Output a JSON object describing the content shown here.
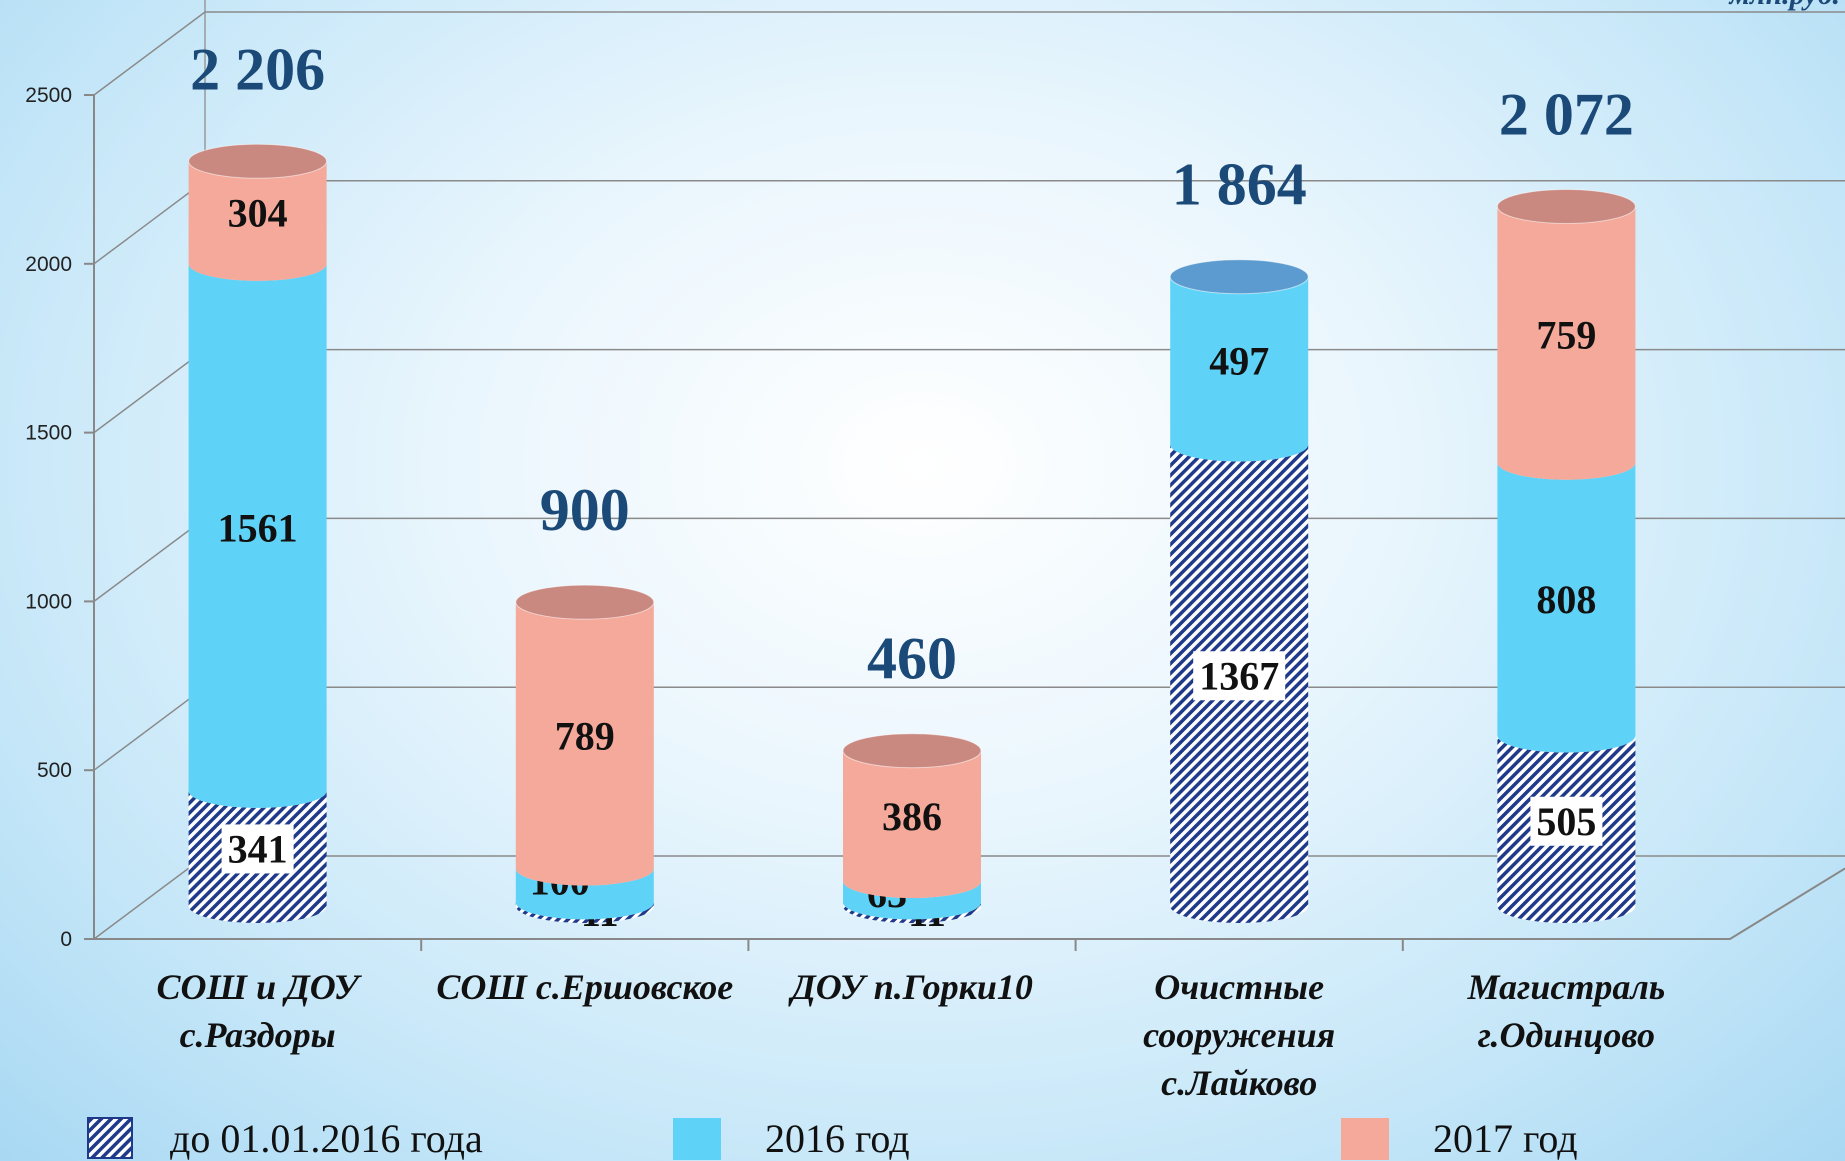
{
  "chart_data": {
    "type": "cylinder_stacked_bar",
    "unit": "млн.руб.",
    "categories": [
      "СОШ и ДОУ с.Раздоры",
      "СОШ с.Ершовское",
      "ДОУ п.Горки10",
      "Очистные сооружения с.Лайково",
      "Магистраль г.Одинцово"
    ],
    "series": [
      {
        "name": "до 01.01.2016 года",
        "color": "#1f3a8a",
        "values": [
          341,
          11,
          11,
          1367,
          505
        ]
      },
      {
        "name": "2016 год",
        "color": "#5ed3f7",
        "values": [
          1561,
          100,
          63,
          497,
          808
        ]
      },
      {
        "name": "2017 год",
        "color": "#f4a99a",
        "values": [
          304,
          789,
          386,
          null,
          759
        ]
      }
    ],
    "totals": [
      2206,
      900,
      460,
      1864,
      2072
    ],
    "total_labels": [
      "2 206",
      "900",
      "460",
      "1 864",
      "2 072"
    ],
    "ylim": [
      0,
      2500
    ],
    "yticks": [
      0,
      500,
      1000,
      1500,
      2000,
      2500
    ],
    "grid": true
  }
}
